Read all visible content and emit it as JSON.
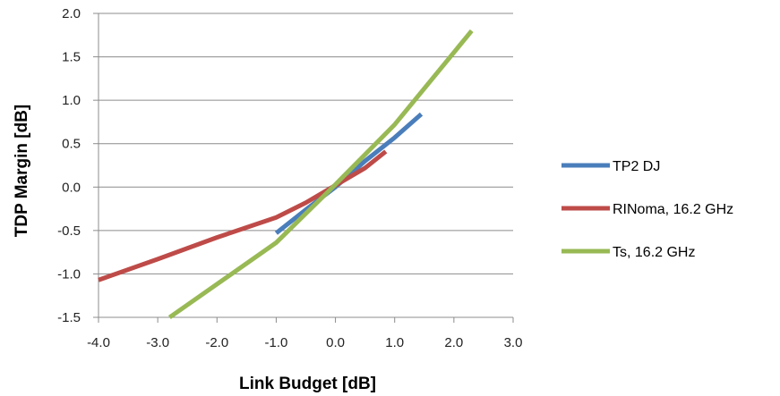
{
  "chart_data": {
    "type": "line",
    "title": "",
    "xlabel": "Link Budget [dB]",
    "ylabel": "TDP Margin [dB]",
    "xlim": [
      -4.0,
      3.0
    ],
    "ylim": [
      -1.5,
      2.0
    ],
    "xticks": [
      "-4.0",
      "-3.0",
      "-2.0",
      "-1.0",
      "0.0",
      "1.0",
      "2.0",
      "3.0"
    ],
    "yticks": [
      "2.0",
      "1.5",
      "1.0",
      "0.5",
      "0.0",
      "-0.5",
      "-1.0",
      "-1.5"
    ],
    "grid": "horizontal",
    "legend_position": "right",
    "series": [
      {
        "name": "TP2 DJ",
        "color": "#4a7ebb",
        "x": [
          -1.0,
          -0.5,
          0.0,
          0.5,
          1.0,
          1.45
        ],
        "y": [
          -0.53,
          -0.26,
          0.0,
          0.3,
          0.57,
          0.84
        ]
      },
      {
        "name": "RINoma,  16.2 GHz",
        "color": "#be4b48",
        "x": [
          -4.0,
          -3.0,
          -2.0,
          -1.0,
          -0.5,
          0.0,
          0.5,
          0.85
        ],
        "y": [
          -1.07,
          -0.83,
          -0.58,
          -0.35,
          -0.18,
          0.02,
          0.22,
          0.41
        ]
      },
      {
        "name": "Ts, 16.2 GHz",
        "color": "#98b954",
        "x": [
          -2.8,
          -1.0,
          0.0,
          1.0,
          2.3
        ],
        "y": [
          -1.5,
          -0.64,
          0.03,
          0.72,
          1.8
        ]
      }
    ]
  }
}
